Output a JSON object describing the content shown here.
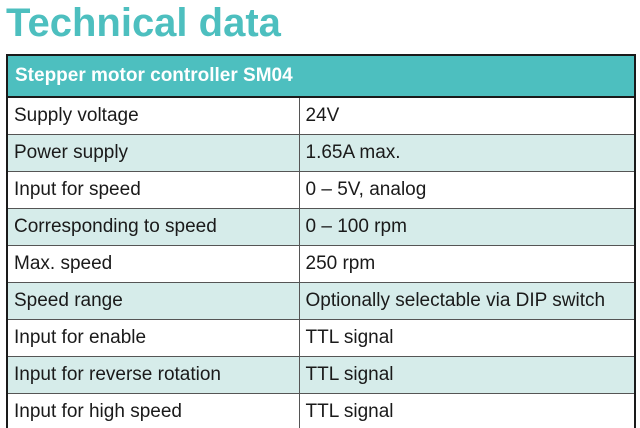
{
  "heading": "Technical data",
  "table": {
    "caption": "Stepper motor controller SM04",
    "rows": [
      {
        "label": "Supply voltage",
        "value": "24V"
      },
      {
        "label": "Power supply",
        "value": "1.65A max."
      },
      {
        "label": "Input for speed",
        "value": "0 – 5V, analog"
      },
      {
        "label": "Corresponding to speed",
        "value": "0 – 100 rpm"
      },
      {
        "label": "Max. speed",
        "value": "250 rpm"
      },
      {
        "label": "Speed range",
        "value": "Optionally selectable via DIP switch"
      },
      {
        "label": "Input for enable",
        "value": "TTL signal"
      },
      {
        "label": "Input for reverse rotation",
        "value": "TTL signal"
      },
      {
        "label": "Input for high speed",
        "value": "TTL signal"
      }
    ]
  },
  "colors": {
    "accent": "#4dbfbf",
    "row_alt": "#d6ecea"
  }
}
